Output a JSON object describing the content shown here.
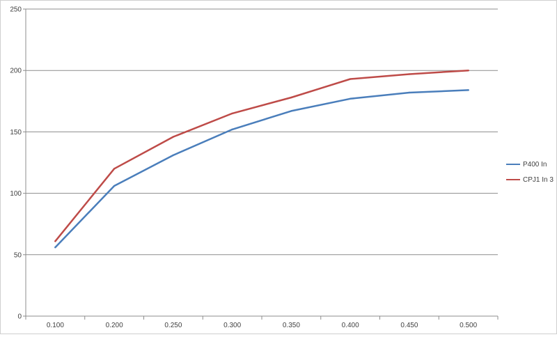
{
  "chart_data": {
    "type": "line",
    "categories": [
      "0.100",
      "0.200",
      "0.250",
      "0.300",
      "0.350",
      "0.400",
      "0.450",
      "0.500"
    ],
    "series": [
      {
        "name": "P400 In",
        "color": "#4a7ebb",
        "values": [
          56,
          106,
          131,
          152,
          167,
          177,
          182,
          184
        ]
      },
      {
        "name": "CPJ1 In 3",
        "color": "#be4b48",
        "values": [
          61,
          120,
          146,
          165,
          178,
          193,
          197,
          200
        ]
      }
    ],
    "ylim": [
      0,
      250
    ],
    "yticks": [
      "0",
      "50",
      "100",
      "150",
      "200",
      "250"
    ],
    "grid": "horizontal",
    "legend_position": "right"
  }
}
